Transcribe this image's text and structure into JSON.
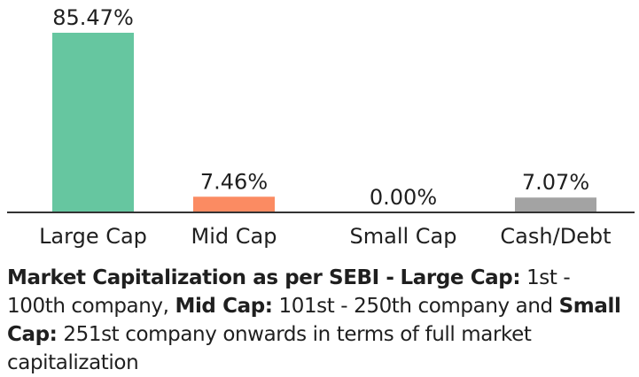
{
  "chart_data": {
    "type": "bar",
    "categories": [
      "Large Cap",
      "Mid Cap",
      "Small Cap",
      "Cash/Debt"
    ],
    "values": [
      85.47,
      7.46,
      0.0,
      7.07
    ],
    "data_labels": [
      "85.47%",
      "7.46%",
      "0.00%",
      "7.07%"
    ],
    "colors": [
      "#66c6a0",
      "#fb8b62",
      "#9e9e9e",
      "#a3a3a3"
    ],
    "title": "",
    "xlabel": "",
    "ylabel": "",
    "ylim": [
      0,
      85.47
    ],
    "grid": false,
    "legend": "none"
  },
  "footnote": {
    "lead_bold": "Market Capitalization as per SEBI -",
    "large_cap_label": "Large Cap:",
    "large_cap_text": "1st - 100th company,",
    "mid_cap_label": "Mid Cap:",
    "mid_cap_text": "101st - 250th company and",
    "small_cap_label": "Small Cap:",
    "small_cap_text": "251st company onwards in terms of full market capitalization"
  },
  "colors": {
    "axis": "#333333",
    "text": "#1f1f1f"
  }
}
